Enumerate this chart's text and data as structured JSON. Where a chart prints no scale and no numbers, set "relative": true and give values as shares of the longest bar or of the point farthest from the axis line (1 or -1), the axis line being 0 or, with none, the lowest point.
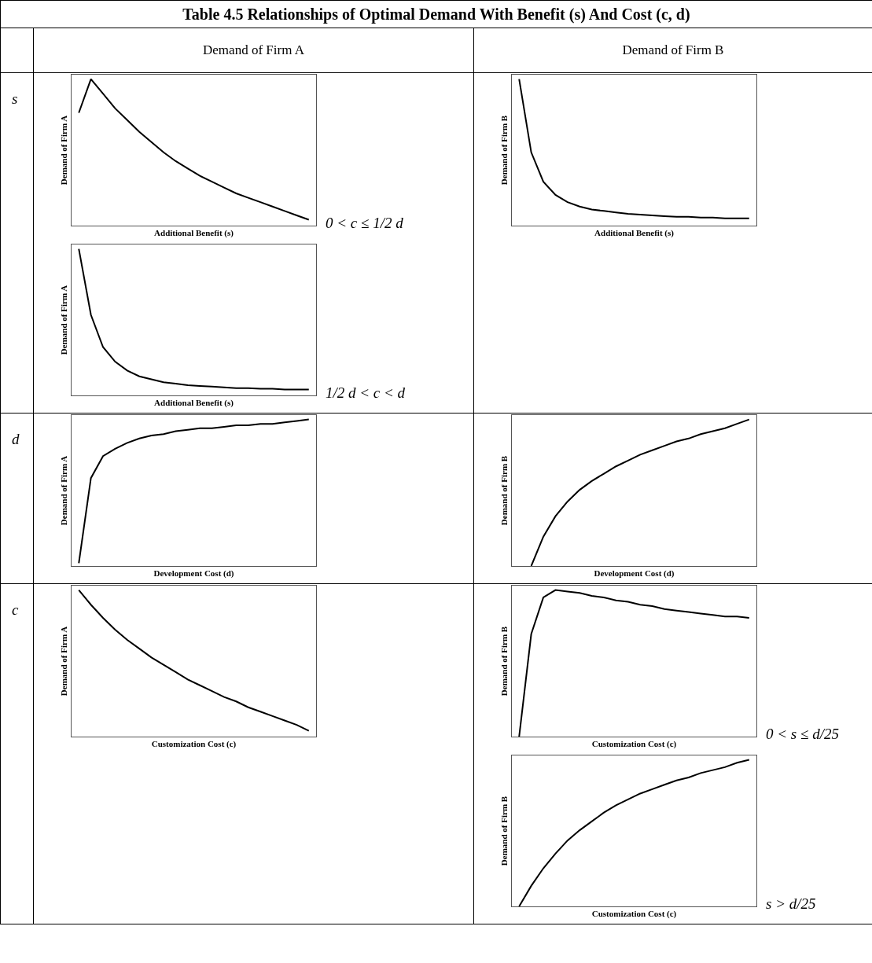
{
  "chart_data": [
    {
      "type": "other",
      "title": "Table 4.5 Relationships of Optimal Demand With Benefit (s) And Cost (c, d)",
      "annotations": [
        "Demand of Firm A",
        "Demand of Firm B",
        "s",
        "d",
        "c"
      ]
    },
    {
      "type": "line",
      "relative": true,
      "color": "#000000",
      "xlabel": "Additional Benefit (s)",
      "ylabel": "Demand of Firm A",
      "annotations": [
        "0 < c ≤ 1/2 d"
      ],
      "categories": [
        null,
        null,
        null,
        null,
        null,
        null,
        null,
        null,
        null,
        null,
        null,
        null,
        null,
        null,
        null,
        null,
        null,
        null,
        null,
        null
      ],
      "values": [
        0.77,
        1,
        0.9,
        0.8,
        0.72,
        0.64,
        0.57,
        0.5,
        0.44,
        0.39,
        0.34,
        0.3,
        0.26,
        0.22,
        0.19,
        0.16,
        0.13,
        0.1,
        0.07,
        0.04
      ]
    },
    {
      "type": "line",
      "relative": true,
      "color": "#000000",
      "xlabel": "Additional Benefit (s)",
      "ylabel": "Demand of Firm A",
      "annotations": [
        "1/2 d < c < d"
      ],
      "categories": [
        null,
        null,
        null,
        null,
        null,
        null,
        null,
        null,
        null,
        null,
        null,
        null,
        null,
        null,
        null,
        null,
        null,
        null,
        null,
        null
      ],
      "values": [
        1,
        0.55,
        0.33,
        0.23,
        0.17,
        0.13,
        0.11,
        0.09,
        0.08,
        0.07,
        0.065,
        0.06,
        0.055,
        0.05,
        0.05,
        0.045,
        0.045,
        0.04,
        0.04,
        0.04
      ]
    },
    {
      "type": "line",
      "relative": true,
      "color": "#000000",
      "xlabel": "Additional Benefit (s)",
      "ylabel": "Demand of Firm B",
      "categories": [
        null,
        null,
        null,
        null,
        null,
        null,
        null,
        null,
        null,
        null,
        null,
        null,
        null,
        null,
        null,
        null,
        null,
        null,
        null,
        null
      ],
      "values": [
        1,
        0.5,
        0.3,
        0.21,
        0.16,
        0.13,
        0.11,
        0.1,
        0.09,
        0.08,
        0.075,
        0.07,
        0.065,
        0.06,
        0.06,
        0.055,
        0.055,
        0.05,
        0.05,
        0.05
      ]
    },
    {
      "type": "line",
      "relative": true,
      "color": "#000000",
      "xlabel": "Development Cost (d)",
      "ylabel": "Demand of Firm A",
      "categories": [
        null,
        null,
        null,
        null,
        null,
        null,
        null,
        null,
        null,
        null,
        null,
        null,
        null,
        null,
        null,
        null,
        null,
        null,
        null,
        null
      ],
      "values": [
        0.02,
        0.6,
        0.75,
        0.8,
        0.84,
        0.87,
        0.89,
        0.9,
        0.92,
        0.93,
        0.94,
        0.94,
        0.95,
        0.96,
        0.96,
        0.97,
        0.97,
        0.98,
        0.99,
        1
      ]
    },
    {
      "type": "line",
      "relative": true,
      "color": "#000000",
      "xlabel": "Development Cost (d)",
      "ylabel": "Demand of Firm B",
      "categories": [
        null,
        null,
        null,
        null,
        null,
        null,
        null,
        null,
        null,
        null,
        null,
        null,
        null,
        null,
        null,
        null,
        null,
        null,
        null,
        null
      ],
      "values": [
        null,
        0,
        0.2,
        0.34,
        0.44,
        0.52,
        0.58,
        0.63,
        0.68,
        0.72,
        0.76,
        0.79,
        0.82,
        0.85,
        0.87,
        0.9,
        0.92,
        0.94,
        0.97,
        1
      ]
    },
    {
      "type": "line",
      "relative": true,
      "color": "#000000",
      "xlabel": "Customization Cost (c)",
      "ylabel": "Demand of Firm A",
      "categories": [
        null,
        null,
        null,
        null,
        null,
        null,
        null,
        null,
        null,
        null,
        null,
        null,
        null,
        null,
        null,
        null,
        null,
        null,
        null,
        null
      ],
      "values": [
        1,
        0.9,
        0.81,
        0.73,
        0.66,
        0.6,
        0.54,
        0.49,
        0.44,
        0.39,
        0.35,
        0.31,
        0.27,
        0.24,
        0.2,
        0.17,
        0.14,
        0.11,
        0.08,
        0.04
      ]
    },
    {
      "type": "line",
      "relative": true,
      "color": "#000000",
      "xlabel": "Customization Cost (c)",
      "ylabel": "Demand of Firm B",
      "annotations": [
        "0 < s ≤ d/25"
      ],
      "categories": [
        null,
        null,
        null,
        null,
        null,
        null,
        null,
        null,
        null,
        null,
        null,
        null,
        null,
        null,
        null,
        null,
        null,
        null,
        null,
        null
      ],
      "values": [
        0,
        0.7,
        0.95,
        1,
        0.99,
        0.98,
        0.96,
        0.95,
        0.93,
        0.92,
        0.9,
        0.89,
        0.87,
        0.86,
        0.85,
        0.84,
        0.83,
        0.82,
        0.82,
        0.81
      ]
    },
    {
      "type": "line",
      "relative": true,
      "color": "#000000",
      "xlabel": "Customization Cost (c)",
      "ylabel": "Demand of Firm B",
      "annotations": [
        "s > d/25"
      ],
      "categories": [
        null,
        null,
        null,
        null,
        null,
        null,
        null,
        null,
        null,
        null,
        null,
        null,
        null,
        null,
        null,
        null,
        null,
        null,
        null,
        null
      ],
      "values": [
        0,
        0.14,
        0.26,
        0.36,
        0.45,
        0.52,
        0.58,
        0.64,
        0.69,
        0.73,
        0.77,
        0.8,
        0.83,
        0.86,
        0.88,
        0.91,
        0.93,
        0.95,
        0.98,
        1
      ]
    }
  ]
}
